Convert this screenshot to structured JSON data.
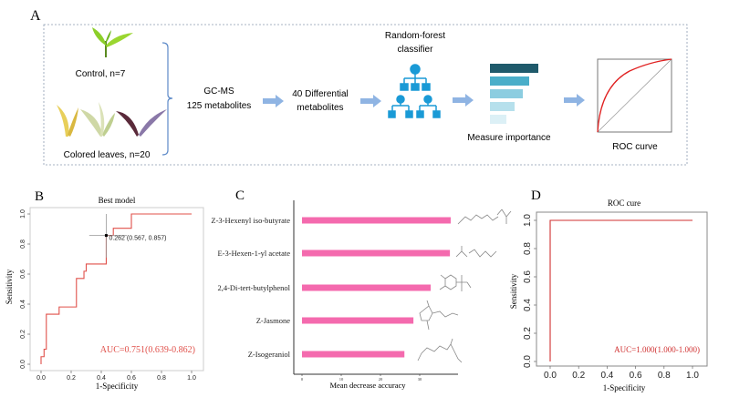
{
  "panel_a": {
    "label": "A",
    "control_label": "Control, n=7",
    "colored_label": "Colored leaves, n=20",
    "gcms_line1": "GC-MS",
    "gcms_line2": "125 metabolites",
    "diff_line1": "40 Differential",
    "diff_line2": "metabolites",
    "rf_line1": "Random-forest",
    "rf_line2": "classifier",
    "importance_label": "Measure importance",
    "roc_label": "ROC curve",
    "colors": {
      "arrow": "#8fb4e3",
      "tree": "#1a9ad6",
      "curve": "#e02020",
      "importance": [
        "#1f5a6b",
        "#4aaec9",
        "#8ccde0",
        "#b6e0ec",
        "#dcf0f6"
      ]
    }
  },
  "chart_data": [
    {
      "panel": "B",
      "type": "line",
      "title": "Best model",
      "xlabel": "1-Specificity",
      "ylabel": "Sensitivity",
      "xlim": [
        0,
        1
      ],
      "ylim": [
        0,
        1
      ],
      "xticks": [
        "0.0",
        "0.2",
        "0.4",
        "0.6",
        "0.8",
        "1.0"
      ],
      "yticks": [
        "0.0",
        "0.2",
        "0.4",
        "0.6",
        "0.8",
        "1.0"
      ],
      "series": [
        {
          "x": [
            0,
            0,
            0.02,
            0.02,
            0.035,
            0.035,
            0.12,
            0.12,
            0.235,
            0.235,
            0.285,
            0.285,
            0.3,
            0.3,
            0.433,
            0.433,
            0.48,
            0.48,
            0.6,
            0.6,
            1
          ],
          "y": [
            0,
            0.05,
            0.05,
            0.1,
            0.1,
            0.333,
            0.333,
            0.381,
            0.381,
            0.571,
            0.571,
            0.619,
            0.619,
            0.667,
            0.667,
            0.857,
            0.857,
            0.905,
            0.905,
            1,
            1
          ]
        }
      ],
      "best_point": {
        "x": 0.433,
        "y": 0.857,
        "x_ci": [
          0.32,
          0.57
        ],
        "y_ci": [
          0.71,
          1.0
        ],
        "label": "0.262 (0.567, 0.857)"
      },
      "annotation": "AUC=0.751(0.639-0.862)",
      "color": "#e0504a"
    },
    {
      "panel": "C",
      "type": "bar",
      "orientation": "horizontal",
      "xlabel": "Mean decrease accuracy",
      "xlim": [
        0,
        40
      ],
      "xticks": [
        "0",
        "10",
        "20",
        "30"
      ],
      "categories": [
        "Z-3-Hexenyl iso-butyrate",
        "E-3-Hexen-1-yl acetate",
        "2,4-Di-tert-butylphenol",
        "Z-Jasmone",
        "Z-Isogeraniol"
      ],
      "values": [
        37.9,
        37.7,
        32.8,
        28.4,
        26.1
      ],
      "color": "#f46aae"
    },
    {
      "panel": "D",
      "type": "line",
      "title": "ROC cure",
      "xlabel": "1-Specificity",
      "ylabel": "Sensitivity",
      "xlim": [
        0,
        1
      ],
      "ylim": [
        0,
        1
      ],
      "xticks": [
        "0.0",
        "0.2",
        "0.4",
        "0.6",
        "0.8",
        "1.0"
      ],
      "yticks": [
        "0.0",
        "0.2",
        "0.4",
        "0.6",
        "0.8",
        "1.0"
      ],
      "series": [
        {
          "x": [
            0,
            0,
            1
          ],
          "y": [
            0,
            1,
            1
          ]
        }
      ],
      "annotation": "AUC=1.000(1.000-1.000)",
      "color": "#d03030"
    }
  ],
  "panel_labels": {
    "b": "B",
    "c": "C",
    "d": "D"
  }
}
